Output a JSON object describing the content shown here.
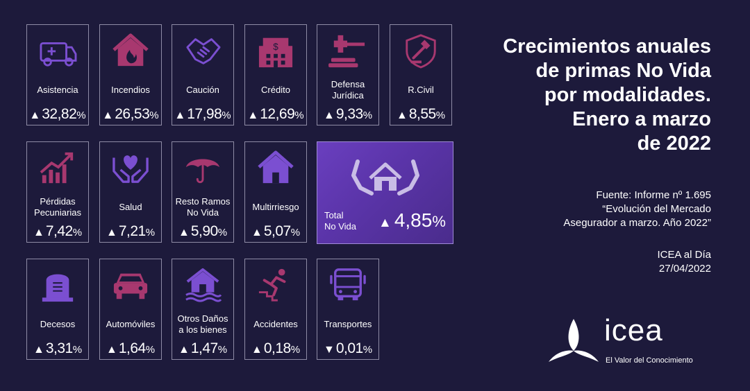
{
  "cards": [
    {
      "label": "Asistencia",
      "arrow": "▲",
      "value": "32,82",
      "unit": "%",
      "icon": "ambulance-icon"
    },
    {
      "label": "Incendios",
      "arrow": "▲",
      "value": "26,53",
      "unit": "%",
      "icon": "house-fire-icon"
    },
    {
      "label": "Caución",
      "arrow": "▲",
      "value": "17,98",
      "unit": "%",
      "icon": "handshake-icon"
    },
    {
      "label": "Crédito",
      "arrow": "▲",
      "value": "12,69",
      "unit": "%",
      "icon": "bank-building-icon"
    },
    {
      "label": "Defensa\nJurídica",
      "arrow": "▲",
      "value": "9,33",
      "unit": "%",
      "icon": "gavel-icon"
    },
    {
      "label": "R.Civil",
      "arrow": "▲",
      "value": "8,55",
      "unit": "%",
      "icon": "shield-gavel-icon"
    },
    {
      "label": "Pérdidas\nPecuniarias",
      "arrow": "▲",
      "value": "7,42",
      "unit": "%",
      "icon": "growth-chart-icon"
    },
    {
      "label": "Salud",
      "arrow": "▲",
      "value": "7,21",
      "unit": "%",
      "icon": "hands-heart-icon"
    },
    {
      "label": "Resto Ramos\nNo Vida",
      "arrow": "▲",
      "value": "5,90",
      "unit": "%",
      "icon": "umbrella-icon"
    },
    {
      "label": "Multirriesgo",
      "arrow": "▲",
      "value": "5,07",
      "unit": "%",
      "icon": "house-icon"
    },
    {
      "label": "Decesos",
      "arrow": "▲",
      "value": "3,31",
      "unit": "%",
      "icon": "tombstone-icon"
    },
    {
      "label": "Automóviles",
      "arrow": "▲",
      "value": "1,64",
      "unit": "%",
      "icon": "car-icon"
    },
    {
      "label": "Otros Daños\na los bienes",
      "arrow": "▲",
      "value": "1,47",
      "unit": "%",
      "icon": "flooded-house-icon"
    },
    {
      "label": "Accidentes",
      "arrow": "▲",
      "value": "0,18",
      "unit": "%",
      "icon": "falling-person-icon"
    },
    {
      "label": "Transportes",
      "arrow": "▼",
      "value": "0,01",
      "unit": "%",
      "icon": "bus-icon"
    }
  ],
  "total": {
    "label": "Total\nNo Vida",
    "arrow": "▲",
    "value": "4,85",
    "unit": "%",
    "icon": "hands-house-icon"
  },
  "title": "Crecimientos anuales\nde primas No Vida\npor modalidades.\nEnero a marzo\nde 2022",
  "source": "Fuente: Informe nº 1.695\n“Evolución del Mercado\nAsegurador a marzo. Año 2022”",
  "publication": "ICEA al Día\n27/04/2022",
  "logo": {
    "wordmark": "icea",
    "tagline": "El Valor del Conocimiento"
  },
  "colors": {
    "background": "#1d1a3b",
    "accent_purple": "#7b4fd1",
    "accent_magenta": "#a8386f",
    "total_panel": "#5a34a8"
  }
}
